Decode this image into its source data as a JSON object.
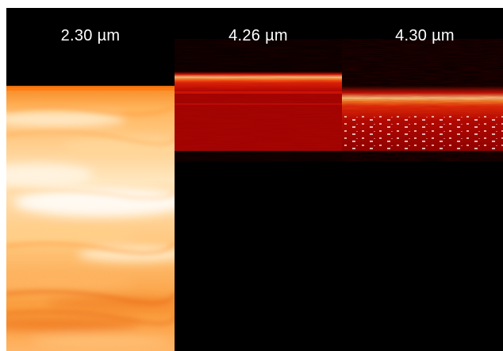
{
  "panels": [
    {
      "label": "2.30 µm",
      "colormap": [
        "#fff3dc",
        "#ffc46a",
        "#ff9d2a",
        "#f47c1e"
      ]
    },
    {
      "label": "4.26 µm",
      "colormap": [
        "#ffd28a",
        "#ff5a18",
        "#c40e04",
        "#8a0000"
      ]
    },
    {
      "label": "4.30 µm",
      "colormap": [
        "#ffd88a",
        "#ff7a1e",
        "#c01000",
        "#7a0000"
      ]
    }
  ],
  "colors": {
    "background": "#000000",
    "label": "#ffffff"
  }
}
